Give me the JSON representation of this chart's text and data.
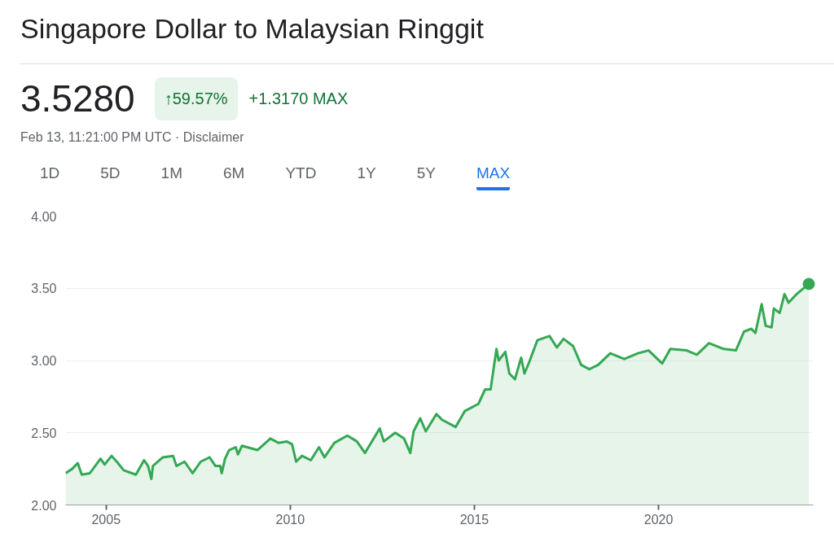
{
  "chart_data": {
    "type": "area",
    "title": "Singapore Dollar to Malaysian Ringgit",
    "annotations": [
      "3.5280",
      "↑59.57%",
      "+1.3170 MAX",
      "Feb 13, 11:21:00 PM UTC · Disclaimer",
      "1D",
      "5D",
      "1M",
      "6M",
      "YTD",
      "1Y",
      "5Y",
      "MAX"
    ],
    "xlim": [
      2003.9,
      2024.2
    ],
    "xticks": [
      2005,
      2010,
      2015,
      2020
    ],
    "ylim": [
      2.0,
      4.0
    ],
    "yticks": [
      {
        "value": 2.0,
        "label": "2.00"
      },
      {
        "value": 2.5,
        "label": "2.50"
      },
      {
        "value": 3.0,
        "label": "3.00"
      },
      {
        "value": 3.5,
        "label": "3.50"
      },
      {
        "value": 4.0,
        "label": "4.00"
      }
    ],
    "grid": "y",
    "series": [
      {
        "color": "#34a853",
        "x": [
          2003.9,
          2004.08,
          2004.23,
          2004.34,
          2004.56,
          2004.85,
          2004.96,
          2005.15,
          2005.29,
          2005.48,
          2005.81,
          2006.03,
          2006.14,
          2006.23,
          2006.27,
          2006.54,
          2006.82,
          2006.91,
          2007.13,
          2007.35,
          2007.57,
          2007.81,
          2007.97,
          2008.1,
          2008.14,
          2008.23,
          2008.34,
          2008.52,
          2008.58,
          2008.69,
          2009.11,
          2009.46,
          2009.68,
          2009.9,
          2010.05,
          2010.16,
          2010.32,
          2010.56,
          2010.78,
          2010.93,
          2011.2,
          2011.55,
          2011.81,
          2012.03,
          2012.43,
          2012.54,
          2012.85,
          2013.09,
          2013.26,
          2013.35,
          2013.53,
          2013.68,
          2013.97,
          2014.12,
          2014.49,
          2014.74,
          2015.11,
          2015.29,
          2015.44,
          2015.6,
          2015.66,
          2015.84,
          2015.95,
          2016.1,
          2016.27,
          2016.36,
          2016.49,
          2016.71,
          2017.04,
          2017.24,
          2017.42,
          2017.68,
          2017.9,
          2018.12,
          2018.36,
          2018.69,
          2019.07,
          2019.44,
          2019.73,
          2020.1,
          2020.32,
          2020.76,
          2021.04,
          2021.37,
          2021.77,
          2022.1,
          2022.32,
          2022.52,
          2022.63,
          2022.8,
          2022.91,
          2023.07,
          2023.13,
          2023.29,
          2023.42,
          2023.53,
          2023.75,
          2024.08
        ],
        "values": [
          2.22,
          2.25,
          2.29,
          2.21,
          2.22,
          2.32,
          2.28,
          2.34,
          2.3,
          2.24,
          2.21,
          2.31,
          2.27,
          2.18,
          2.27,
          2.33,
          2.34,
          2.27,
          2.3,
          2.22,
          2.3,
          2.33,
          2.27,
          2.27,
          2.22,
          2.32,
          2.38,
          2.4,
          2.35,
          2.41,
          2.38,
          2.46,
          2.43,
          2.44,
          2.42,
          2.3,
          2.34,
          2.31,
          2.4,
          2.33,
          2.43,
          2.48,
          2.44,
          2.36,
          2.53,
          2.44,
          2.5,
          2.46,
          2.36,
          2.51,
          2.6,
          2.51,
          2.63,
          2.59,
          2.54,
          2.65,
          2.7,
          2.8,
          2.8,
          3.08,
          3.0,
          3.06,
          2.91,
          2.87,
          3.02,
          2.91,
          2.99,
          3.14,
          3.17,
          3.09,
          3.15,
          3.1,
          2.97,
          2.94,
          2.97,
          3.05,
          3.01,
          3.05,
          3.07,
          2.98,
          3.08,
          3.07,
          3.04,
          3.12,
          3.08,
          3.07,
          3.2,
          3.22,
          3.19,
          3.39,
          3.24,
          3.23,
          3.36,
          3.33,
          3.46,
          3.4,
          3.46,
          3.53
        ]
      },
      {
        "type": "scatter",
        "marker": "circle",
        "color": "#34a853",
        "x": [
          2024.08
        ],
        "values": [
          3.53
        ]
      }
    ]
  }
}
